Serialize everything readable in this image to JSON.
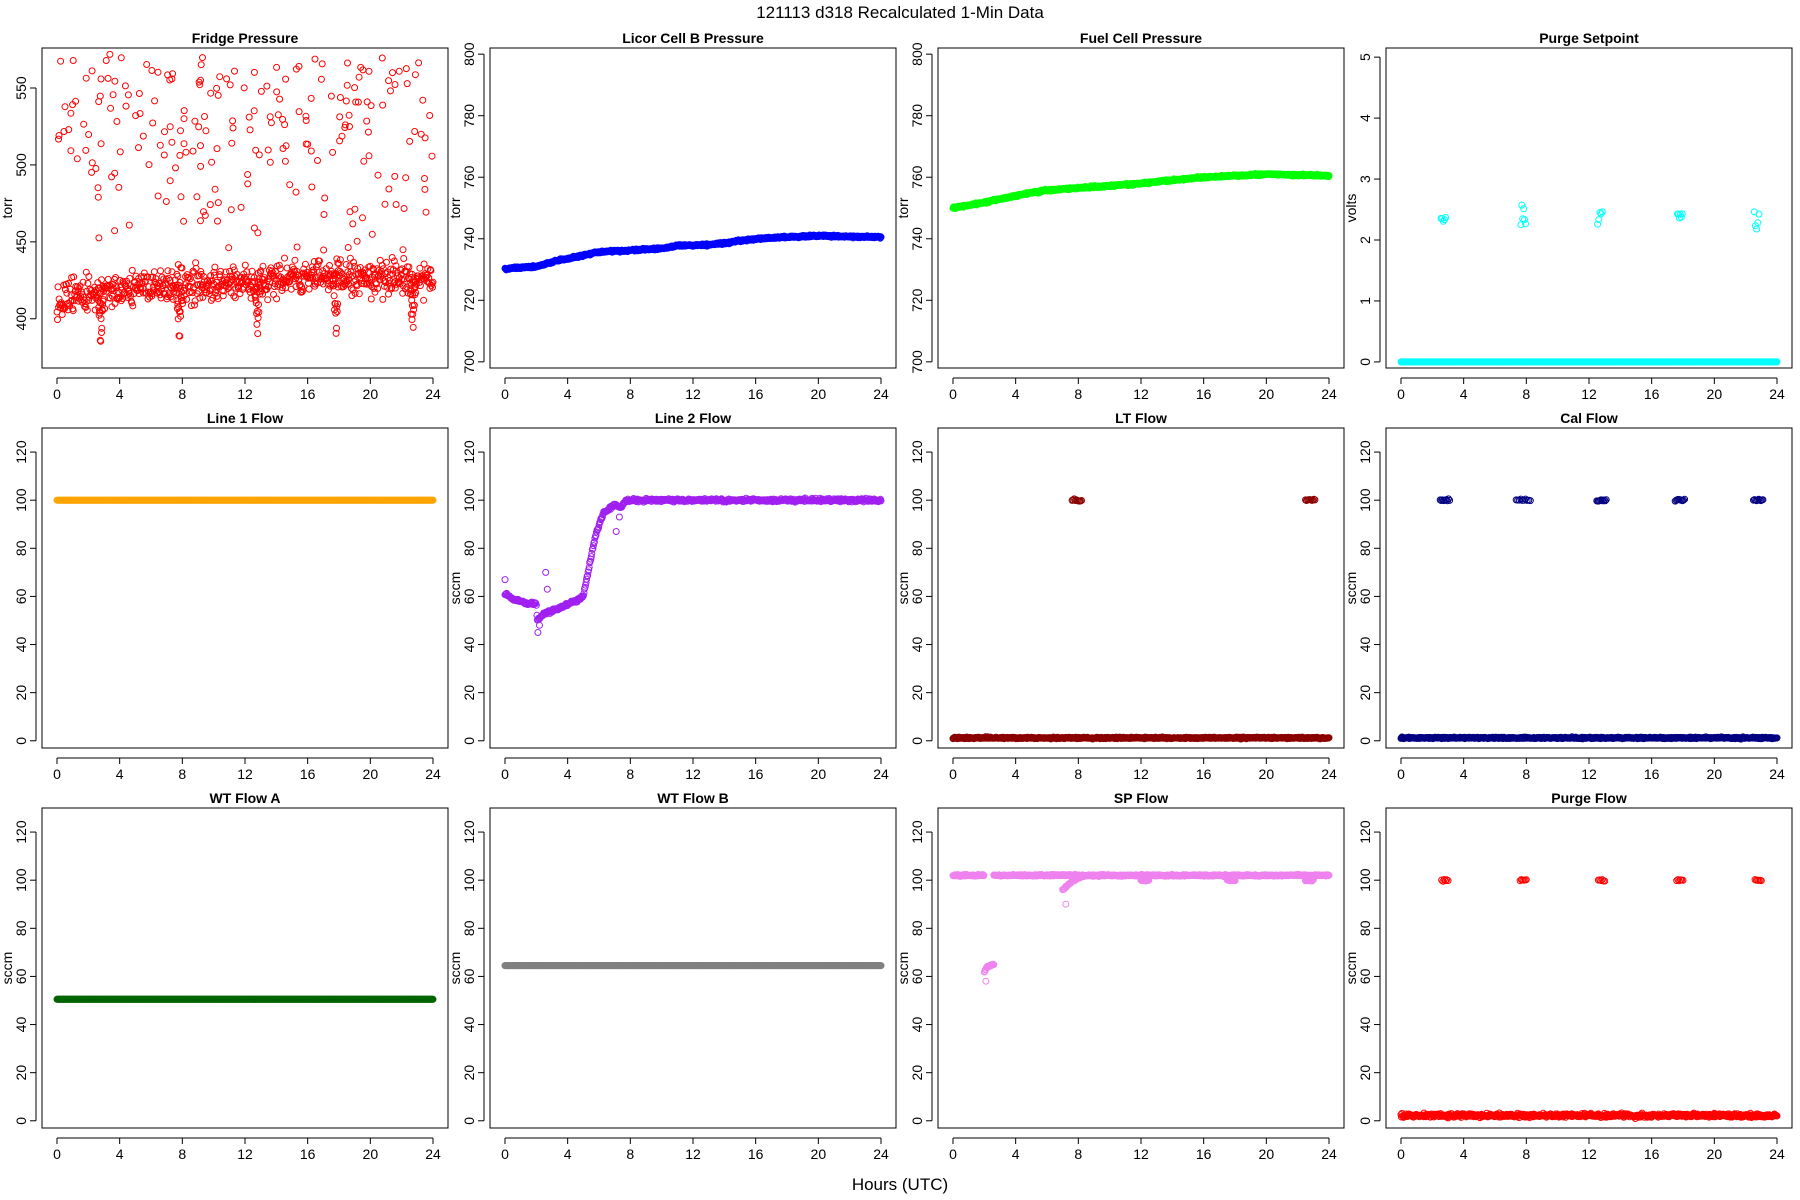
{
  "figure": {
    "title": "121113   d318   Recalculated 1-Min Data",
    "xlabel": "Hours (UTC)"
  },
  "chart_data": [
    {
      "type": "scatter",
      "title": "Fridge Pressure",
      "ylabel": "torr",
      "color": "#ff0000",
      "xlim": [
        0,
        24
      ],
      "xticks": [
        0,
        4,
        8,
        12,
        16,
        20,
        24
      ],
      "ylim": [
        368,
        576
      ],
      "yticks": [
        400,
        450,
        500,
        550
      ],
      "x_range": [
        0,
        24
      ],
      "n_points": 720,
      "baseline": {
        "mean": 418,
        "spread": 10,
        "x_breakpoints": [
          0,
          4,
          8,
          12,
          18,
          24
        ],
        "y_breakpoints": [
          413,
          419,
          422,
          424,
          428,
          426
        ]
      },
      "outliers": {
        "count": 220,
        "range": [
          440,
          572
        ]
      },
      "dips": [
        {
          "x": 2.8,
          "min": 372
        },
        {
          "x": 7.8,
          "min": 378
        },
        {
          "x": 12.8,
          "min": 382
        },
        {
          "x": 17.8,
          "min": 382
        },
        {
          "x": 22.7,
          "min": 380
        }
      ]
    },
    {
      "type": "scatter",
      "title": "Licor Cell B Pressure",
      "ylabel": "torr",
      "color": "#0000ff",
      "xlim": [
        0,
        24
      ],
      "xticks": [
        0,
        4,
        8,
        12,
        16,
        20,
        24
      ],
      "ylim": [
        698,
        802
      ],
      "yticks": [
        700,
        720,
        740,
        760,
        780,
        800
      ],
      "x_range": [
        0,
        24
      ],
      "n_points": 900,
      "baseline": {
        "x_breakpoints": [
          0,
          2,
          3,
          6,
          10,
          11,
          13,
          16,
          20,
          24
        ],
        "y_breakpoints": [
          730.2,
          731.0,
          732.5,
          735.7,
          736.8,
          737.8,
          738.0,
          740.0,
          741.0,
          740.5
        ],
        "spread": 0.3
      }
    },
    {
      "type": "scatter",
      "title": "Fuel Cell Pressure",
      "ylabel": "torr",
      "color": "#00ff00",
      "xlim": [
        0,
        24
      ],
      "xticks": [
        0,
        4,
        8,
        12,
        16,
        20,
        24
      ],
      "ylim": [
        698,
        802
      ],
      "yticks": [
        700,
        720,
        740,
        760,
        780,
        800
      ],
      "x_range": [
        0,
        24
      ],
      "n_points": 900,
      "baseline": {
        "x_breakpoints": [
          0,
          2,
          4,
          6,
          10,
          12,
          16,
          20,
          24
        ],
        "y_breakpoints": [
          750.0,
          751.8,
          754.0,
          755.8,
          757.2,
          758.0,
          760.0,
          761.0,
          760.5
        ],
        "spread": 0.3
      }
    },
    {
      "type": "scatter",
      "title": "Purge Setpoint",
      "ylabel": "volts",
      "color": "#00ffff",
      "xlim": [
        0,
        24
      ],
      "xticks": [
        0,
        4,
        8,
        12,
        16,
        20,
        24
      ],
      "ylim": [
        -0.1,
        5.15
      ],
      "yticks": [
        0,
        1,
        2,
        3,
        4,
        5
      ],
      "x_range": [
        0,
        24
      ],
      "n_points": 720,
      "baseline": {
        "y": 0,
        "spread": 0
      },
      "clusters": [
        {
          "x": 2.7,
          "y": 2.38,
          "n": 5
        },
        {
          "x": 7.8,
          "y": 2.4,
          "n": 6
        },
        {
          "x": 12.7,
          "y": 2.38,
          "n": 5
        },
        {
          "x": 17.8,
          "y": 2.4,
          "n": 6
        },
        {
          "x": 22.7,
          "y": 2.37,
          "n": 5
        }
      ]
    },
    {
      "type": "scatter",
      "title": "Line 1 Flow",
      "ylabel": "",
      "color": "#ffa500",
      "xlim": [
        0,
        24
      ],
      "xticks": [
        0,
        4,
        8,
        12,
        16,
        20,
        24
      ],
      "ylim": [
        -3,
        130
      ],
      "yticks": [
        0,
        20,
        40,
        60,
        80,
        100,
        120
      ],
      "x_range": [
        0,
        24
      ],
      "n_points": 720,
      "baseline": {
        "y": 100,
        "spread": 0
      }
    },
    {
      "type": "scatter",
      "title": "Line 2 Flow",
      "ylabel": "sccm",
      "color": "#a020f0",
      "xlim": [
        0,
        24
      ],
      "xticks": [
        0,
        4,
        8,
        12,
        16,
        20,
        24
      ],
      "ylim": [
        -3,
        130
      ],
      "yticks": [
        0,
        20,
        40,
        60,
        80,
        100,
        120
      ],
      "x_range": [
        0,
        24
      ],
      "n_points": 720,
      "baseline": {
        "x_breakpoints": [
          0,
          0.5,
          1.5,
          2.0,
          2.05,
          2.5,
          3.5,
          4.0,
          4.5,
          5.0,
          5.3,
          5.8,
          6.3,
          7.0,
          7.4,
          7.7,
          24
        ],
        "y_breakpoints": [
          61,
          59,
          57,
          57,
          50,
          53,
          55,
          57,
          58,
          60,
          70,
          86,
          95,
          98,
          97,
          100,
          100
        ],
        "spread": 0.6
      },
      "outliers": [
        {
          "x": 0,
          "y": 67
        },
        {
          "x": 2.1,
          "y": 45
        },
        {
          "x": 2.2,
          "y": 48
        },
        {
          "x": 2.6,
          "y": 70
        },
        {
          "x": 2.7,
          "y": 63
        },
        {
          "x": 7.1,
          "y": 87
        },
        {
          "x": 7.3,
          "y": 93
        }
      ]
    },
    {
      "type": "scatter",
      "title": "LT Flow",
      "ylabel": "sccm",
      "color": "#8b0000",
      "xlim": [
        0,
        24
      ],
      "xticks": [
        0,
        4,
        8,
        12,
        16,
        20,
        24
      ],
      "ylim": [
        -3,
        130
      ],
      "yticks": [
        0,
        20,
        40,
        60,
        80,
        100,
        120
      ],
      "x_range": [
        0,
        24
      ],
      "n_points": 720,
      "baseline": {
        "y": 1.2,
        "spread": 0.3
      },
      "clusters": [
        {
          "x": 7.9,
          "y": 100,
          "n": 10,
          "width": 0.6
        },
        {
          "x": 22.8,
          "y": 100,
          "n": 10,
          "width": 0.6
        }
      ]
    },
    {
      "type": "scatter",
      "title": "Cal Flow",
      "ylabel": "sccm",
      "color": "#000080",
      "xlim": [
        0,
        24
      ],
      "xticks": [
        0,
        4,
        8,
        12,
        16,
        20,
        24
      ],
      "ylim": [
        -3,
        130
      ],
      "yticks": [
        0,
        20,
        40,
        60,
        80,
        100,
        120
      ],
      "x_range": [
        0,
        24
      ],
      "n_points": 720,
      "baseline": {
        "y": 1.2,
        "spread": 0.3
      },
      "clusters": [
        {
          "x": 2.8,
          "y": 100,
          "n": 10,
          "width": 0.6
        },
        {
          "x": 7.8,
          "y": 100,
          "n": 10,
          "width": 0.9
        },
        {
          "x": 12.8,
          "y": 100,
          "n": 10,
          "width": 0.6
        },
        {
          "x": 17.8,
          "y": 100,
          "n": 10,
          "width": 0.6
        },
        {
          "x": 22.8,
          "y": 100,
          "n": 10,
          "width": 0.6
        }
      ]
    },
    {
      "type": "scatter",
      "title": "WT Flow A",
      "ylabel": "sccm",
      "color": "#006400",
      "xlim": [
        0,
        24
      ],
      "xticks": [
        0,
        4,
        8,
        12,
        16,
        20,
        24
      ],
      "ylim": [
        -3,
        130
      ],
      "yticks": [
        0,
        20,
        40,
        60,
        80,
        100,
        120
      ],
      "x_range": [
        0,
        24
      ],
      "n_points": 720,
      "baseline": {
        "y": 50.5,
        "spread": 0
      }
    },
    {
      "type": "scatter",
      "title": "WT Flow B",
      "ylabel": "sccm",
      "color": "#808080",
      "xlim": [
        0,
        24
      ],
      "xticks": [
        0,
        4,
        8,
        12,
        16,
        20,
        24
      ],
      "ylim": [
        -3,
        130
      ],
      "yticks": [
        0,
        20,
        40,
        60,
        80,
        100,
        120
      ],
      "x_range": [
        0,
        24
      ],
      "n_points": 720,
      "baseline": {
        "y": 64.5,
        "spread": 0
      }
    },
    {
      "type": "scatter",
      "title": "SP Flow",
      "ylabel": "sccm",
      "color": "#ee82ee",
      "xlim": [
        0,
        24
      ],
      "xticks": [
        0,
        4,
        8,
        12,
        16,
        20,
        24
      ],
      "ylim": [
        -3,
        130
      ],
      "yticks": [
        0,
        20,
        40,
        60,
        80,
        100,
        120
      ],
      "x_range": [
        0,
        24
      ],
      "n_points": 720,
      "baseline": {
        "y": 102,
        "spread": 0.3
      },
      "gap": [
        2.0,
        2.6
      ],
      "segments": [
        {
          "x_breakpoints": [
            2.0,
            2.2,
            2.6
          ],
          "y_breakpoints": [
            62,
            64,
            65
          ]
        },
        {
          "x_breakpoints": [
            7.0,
            7.5,
            8.0,
            8.5
          ],
          "y_breakpoints": [
            96,
            99,
            101,
            102
          ]
        },
        {
          "x_breakpoints": [
            12.0,
            12.5
          ],
          "y_breakpoints": [
            100,
            100
          ]
        },
        {
          "x_breakpoints": [
            17.5,
            18.0
          ],
          "y_breakpoints": [
            100,
            100
          ]
        },
        {
          "x_breakpoints": [
            22.5,
            23.0
          ],
          "y_breakpoints": [
            100,
            100
          ]
        }
      ],
      "outliers": [
        {
          "x": 2.1,
          "y": 58
        },
        {
          "x": 7.2,
          "y": 90
        }
      ]
    },
    {
      "type": "scatter",
      "title": "Purge Flow",
      "ylabel": "sccm",
      "color": "#ff0000",
      "xlim": [
        0,
        24
      ],
      "xticks": [
        0,
        4,
        8,
        12,
        16,
        20,
        24
      ],
      "ylim": [
        -3,
        130
      ],
      "yticks": [
        0,
        20,
        40,
        60,
        80,
        100,
        120
      ],
      "x_range": [
        0,
        24
      ],
      "n_points": 720,
      "baseline": {
        "y": 2.2,
        "spread": 0.8
      },
      "clusters": [
        {
          "x": 2.8,
          "y": 100,
          "n": 6,
          "width": 0.4
        },
        {
          "x": 7.8,
          "y": 100,
          "n": 6,
          "width": 0.4
        },
        {
          "x": 12.8,
          "y": 100,
          "n": 6,
          "width": 0.4
        },
        {
          "x": 17.8,
          "y": 100,
          "n": 6,
          "width": 0.4
        },
        {
          "x": 22.8,
          "y": 100,
          "n": 6,
          "width": 0.4
        }
      ]
    }
  ]
}
